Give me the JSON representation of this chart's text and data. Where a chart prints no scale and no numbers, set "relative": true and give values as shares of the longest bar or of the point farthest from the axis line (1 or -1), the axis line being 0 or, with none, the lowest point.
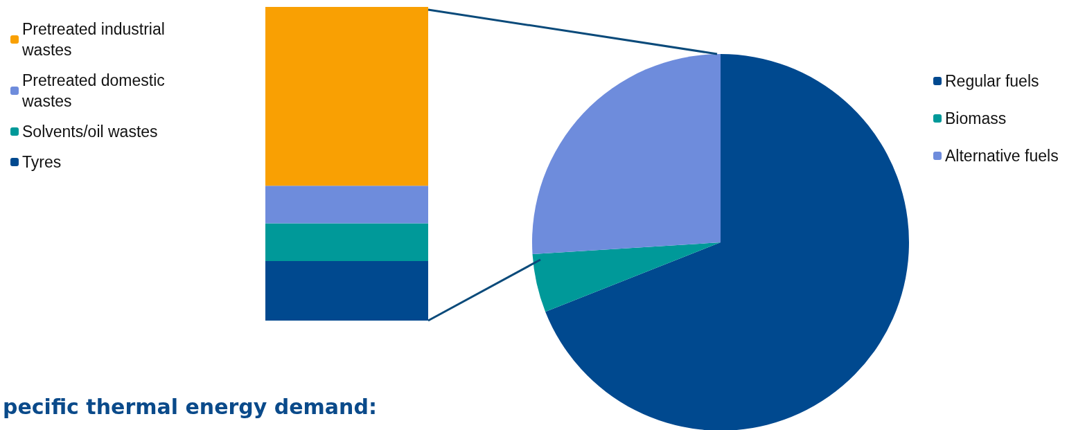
{
  "chart_data": [
    {
      "type": "bar",
      "stacked": true,
      "relative": true,
      "categories": [
        null
      ],
      "legend": "top left",
      "annotations": [
        "pecific thermal energy demand:"
      ],
      "series": [
        {
          "name": "Tyres",
          "color": "#00498f",
          "values": [
            0.19
          ]
        },
        {
          "name": "Solvents/oil wastes",
          "color": "#009999",
          "values": [
            0.12
          ]
        },
        {
          "name": "Pretreated domestic wastes",
          "color": "#6e8cdc",
          "values": [
            0.12
          ]
        },
        {
          "name": "Pretreated industrial wastes",
          "color": "#f9a003",
          "values": [
            0.57
          ]
        }
      ]
    },
    {
      "type": "pie",
      "categories": [
        "Regular fuels",
        "Biomass",
        "Alternative fuels"
      ],
      "values": [
        69,
        5,
        26
      ],
      "colors": [
        "#00498f",
        "#009999",
        "#6e8cdc"
      ],
      "legend": "right"
    }
  ]
}
